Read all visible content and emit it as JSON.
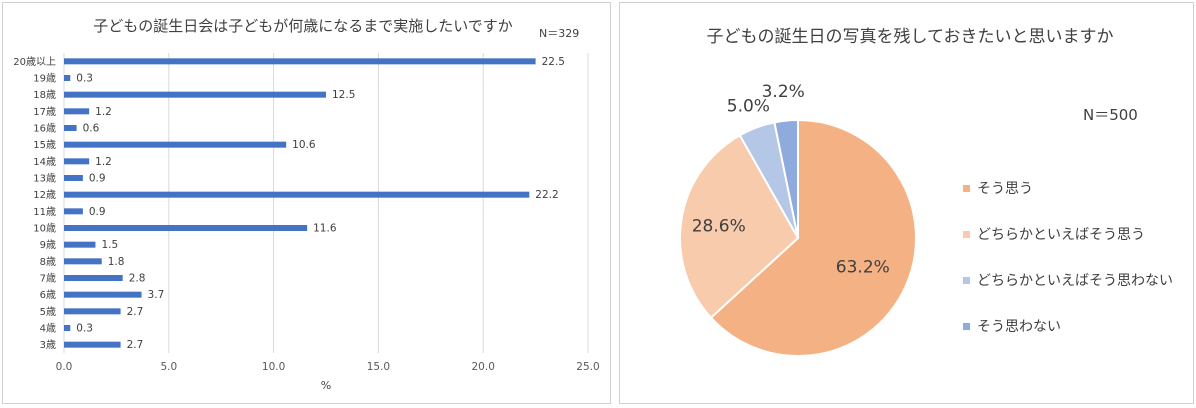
{
  "chart_data": [
    {
      "type": "bar",
      "orientation": "horizontal",
      "title": "子どもの誕生日会は子どもが何歳になるまで実施したいですか",
      "annotation": "N＝329",
      "xlabel": "%",
      "ylabel": "",
      "xlim": [
        0,
        25
      ],
      "ticks": [
        "0.0",
        "5.0",
        "10.0",
        "15.0",
        "20.0",
        "25.0"
      ],
      "grid": true,
      "color": "#4472c4",
      "categories": [
        "20歳以上",
        "19歳",
        "18歳",
        "17歳",
        "16歳",
        "15歳",
        "14歳",
        "13歳",
        "12歳",
        "11歳",
        "10歳",
        "9歳",
        "8歳",
        "7歳",
        "6歳",
        "5歳",
        "4歳",
        "3歳"
      ],
      "values": [
        22.5,
        0.3,
        12.5,
        1.2,
        0.6,
        10.6,
        1.2,
        0.9,
        22.2,
        0.9,
        11.6,
        1.5,
        1.8,
        2.8,
        3.7,
        2.7,
        0.3,
        2.7
      ],
      "value_labels": [
        "22.5",
        "0.3",
        "12.5",
        "1.2",
        "0.6",
        "10.6",
        "1.2",
        "0.9",
        "22.2",
        "0.9",
        "11.6",
        "1.5",
        "1.8",
        "2.8",
        "3.7",
        "2.7",
        "0.3",
        "2.7"
      ]
    },
    {
      "type": "pie",
      "title": "子どもの誕生日の写真を残しておきたいと思いますか",
      "annotation": "N＝500",
      "legend_position": "right",
      "categories": [
        "そう思う",
        "どちらかといえばそう思う",
        "どちらかといえばそう思わない",
        "そう思わない"
      ],
      "values": [
        63.2,
        28.6,
        5.0,
        3.2
      ],
      "value_labels": [
        "63.2%",
        "28.6%",
        "5.0%",
        "3.2%"
      ],
      "colors": [
        "#f4b183",
        "#f8cbad",
        "#b4c7e7",
        "#8faadc"
      ]
    }
  ]
}
